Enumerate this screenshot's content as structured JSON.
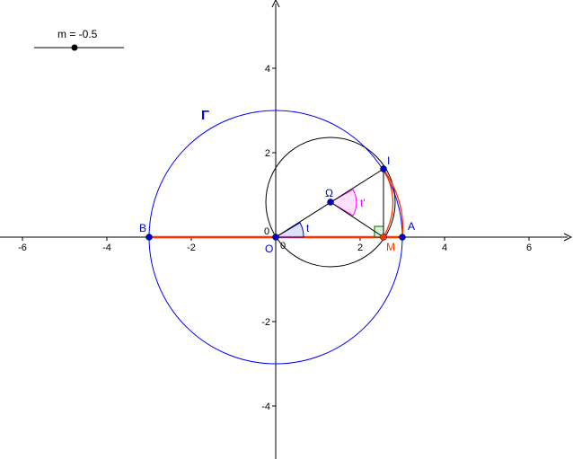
{
  "slider": {
    "label": "m = -0.5",
    "value": -0.5,
    "min": -1,
    "max": 1
  },
  "axes": {
    "x_ticks": [
      "-6",
      "-4",
      "-2",
      "2",
      "4",
      "6"
    ],
    "y_ticks": [
      "4",
      "2",
      "-2",
      "-4"
    ],
    "origin_x_label": "0",
    "origin_y_label": "0"
  },
  "labels": {
    "gamma": "Γ",
    "O": "O",
    "A": "A",
    "B": "B",
    "M": "M",
    "I": "I",
    "Omega": "Ω",
    "t": "t",
    "t_prime": "t'"
  },
  "colors": {
    "point": "#0000cc",
    "red": "#ff3300",
    "circle_gamma": "#0000ff",
    "angle_t": "#0000cc",
    "angle_tp": "#ff00ff",
    "right_angle": "#006600"
  }
}
